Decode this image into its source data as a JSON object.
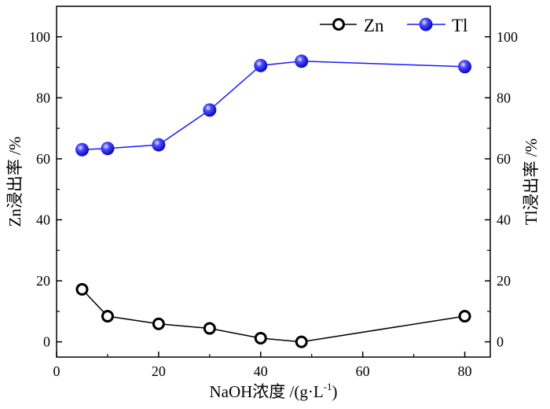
{
  "chart_data": {
    "type": "line",
    "title": "",
    "xlabel": "NaOH浓度 /(g·L",
    "xlabel_sup": "-1",
    "xlabel_end": ")",
    "ylabel_left": "Zn浸出率 /%",
    "ylabel_right": "Tl浸出率 /%",
    "xlim": [
      0,
      85
    ],
    "ylim": [
      -5,
      110
    ],
    "x_ticks": [
      0,
      20,
      40,
      60,
      80
    ],
    "y_ticks": [
      0,
      20,
      40,
      60,
      80,
      100
    ],
    "grid": false,
    "legend_position": "top-right",
    "series": [
      {
        "name": "Zn",
        "marker": "open-circle",
        "color": "#000000",
        "x": [
          5,
          10,
          20,
          30,
          40,
          48,
          80
        ],
        "y": [
          17.2,
          8.4,
          5.9,
          4.4,
          1.2,
          0.0,
          8.4
        ]
      },
      {
        "name": "Tl",
        "marker": "filled-sphere",
        "color": "#1a1aff",
        "x": [
          5,
          10,
          20,
          30,
          40,
          48,
          80
        ],
        "y": [
          63.0,
          63.4,
          64.6,
          76.0,
          90.6,
          92.0,
          90.2
        ]
      }
    ]
  }
}
